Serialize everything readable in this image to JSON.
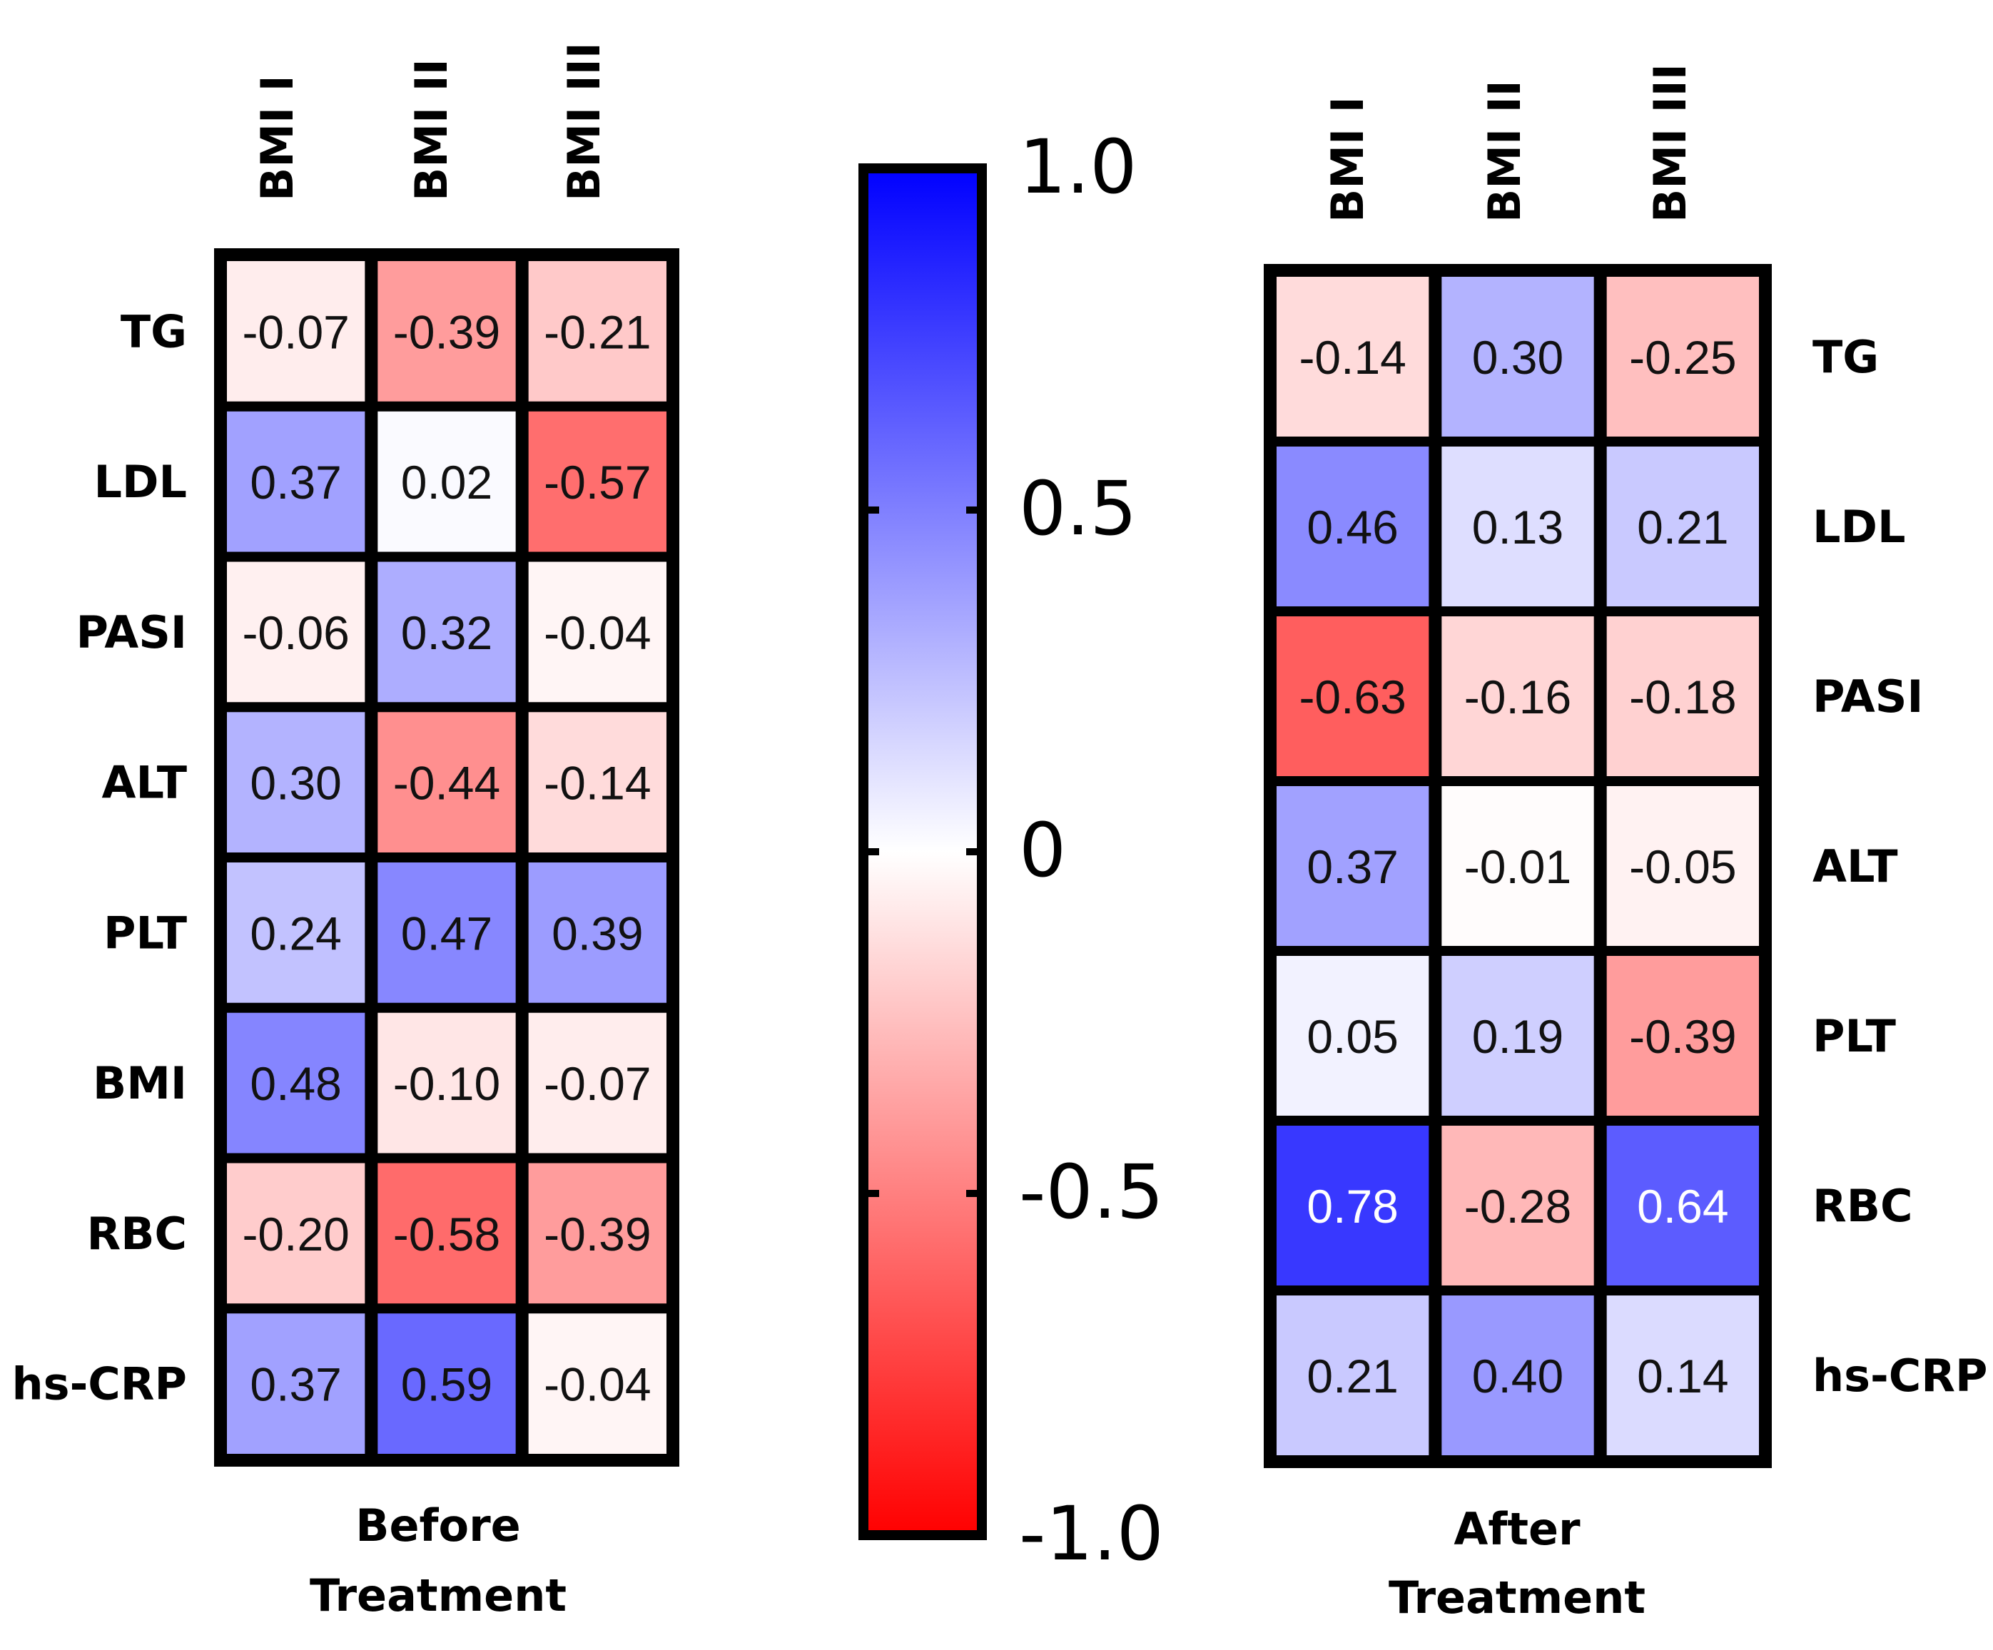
{
  "chart_data": {
    "type": "heatmap",
    "panels": [
      {
        "id": "before",
        "caption": [
          "Before",
          "Treatment"
        ],
        "columns": [
          "BMI I",
          "BMI II",
          "BMI III"
        ],
        "rows": [
          "TG",
          "LDL",
          "PASI",
          "ALT",
          "PLT",
          "BMI",
          "RBC",
          "hs-CRP"
        ],
        "row_label_side": "left",
        "values": [
          [
            -0.07,
            -0.39,
            -0.21
          ],
          [
            0.37,
            0.02,
            -0.57
          ],
          [
            -0.06,
            0.32,
            -0.04
          ],
          [
            0.3,
            -0.44,
            -0.14
          ],
          [
            0.24,
            0.47,
            0.39
          ],
          [
            0.48,
            -0.1,
            -0.07
          ],
          [
            -0.2,
            -0.58,
            -0.39
          ],
          [
            0.37,
            0.59,
            -0.04
          ]
        ],
        "labels": [
          [
            "-0.07",
            "-0.39",
            "-0.21"
          ],
          [
            "0.37",
            "0.02",
            "-0.57"
          ],
          [
            "-0.06",
            "0.32",
            "-0.04"
          ],
          [
            "0.30",
            "-0.44",
            "-0.14"
          ],
          [
            "0.24",
            "0.47",
            "0.39"
          ],
          [
            "0.48",
            "-0.10",
            "-0.07"
          ],
          [
            "-0.20",
            "-0.58",
            "-0.39"
          ],
          [
            "0.37",
            "0.59",
            "-0.04"
          ]
        ]
      },
      {
        "id": "after",
        "caption": [
          "After",
          "Treatment"
        ],
        "columns": [
          "BMI I",
          "BMI II",
          "BMI III"
        ],
        "rows": [
          "TG",
          "LDL",
          "PASI",
          "ALT",
          "PLT",
          "RBC",
          "hs-CRP"
        ],
        "row_label_side": "right",
        "values": [
          [
            -0.14,
            0.3,
            -0.25
          ],
          [
            0.46,
            0.13,
            0.21
          ],
          [
            -0.63,
            -0.16,
            -0.18
          ],
          [
            0.37,
            -0.01,
            -0.05
          ],
          [
            0.05,
            0.19,
            -0.39
          ],
          [
            0.78,
            -0.28,
            0.64
          ],
          [
            0.21,
            0.4,
            0.14
          ]
        ],
        "labels": [
          [
            "-0.14",
            "0.30",
            "-0.25"
          ],
          [
            "0.46",
            "0.13",
            "0.21"
          ],
          [
            "-0.63",
            "-0.16",
            "-0.18"
          ],
          [
            "0.37",
            "-0.01",
            "-0.05"
          ],
          [
            "0.05",
            "0.19",
            "-0.39"
          ],
          [
            "0.78",
            "-0.28",
            "0.64"
          ],
          [
            "0.21",
            "0.40",
            "0.14"
          ]
        ]
      }
    ],
    "colorbar": {
      "range": [
        -1.0,
        1.0
      ],
      "ticks": [
        1.0,
        0.5,
        0,
        -0.5,
        -1.0
      ],
      "tick_labels": [
        "1.0",
        "0.5",
        "0",
        "-0.5",
        "-1.0"
      ],
      "colors": {
        "max": "#0000ff",
        "mid": "#ffffff",
        "min": "#ff0000"
      }
    }
  }
}
